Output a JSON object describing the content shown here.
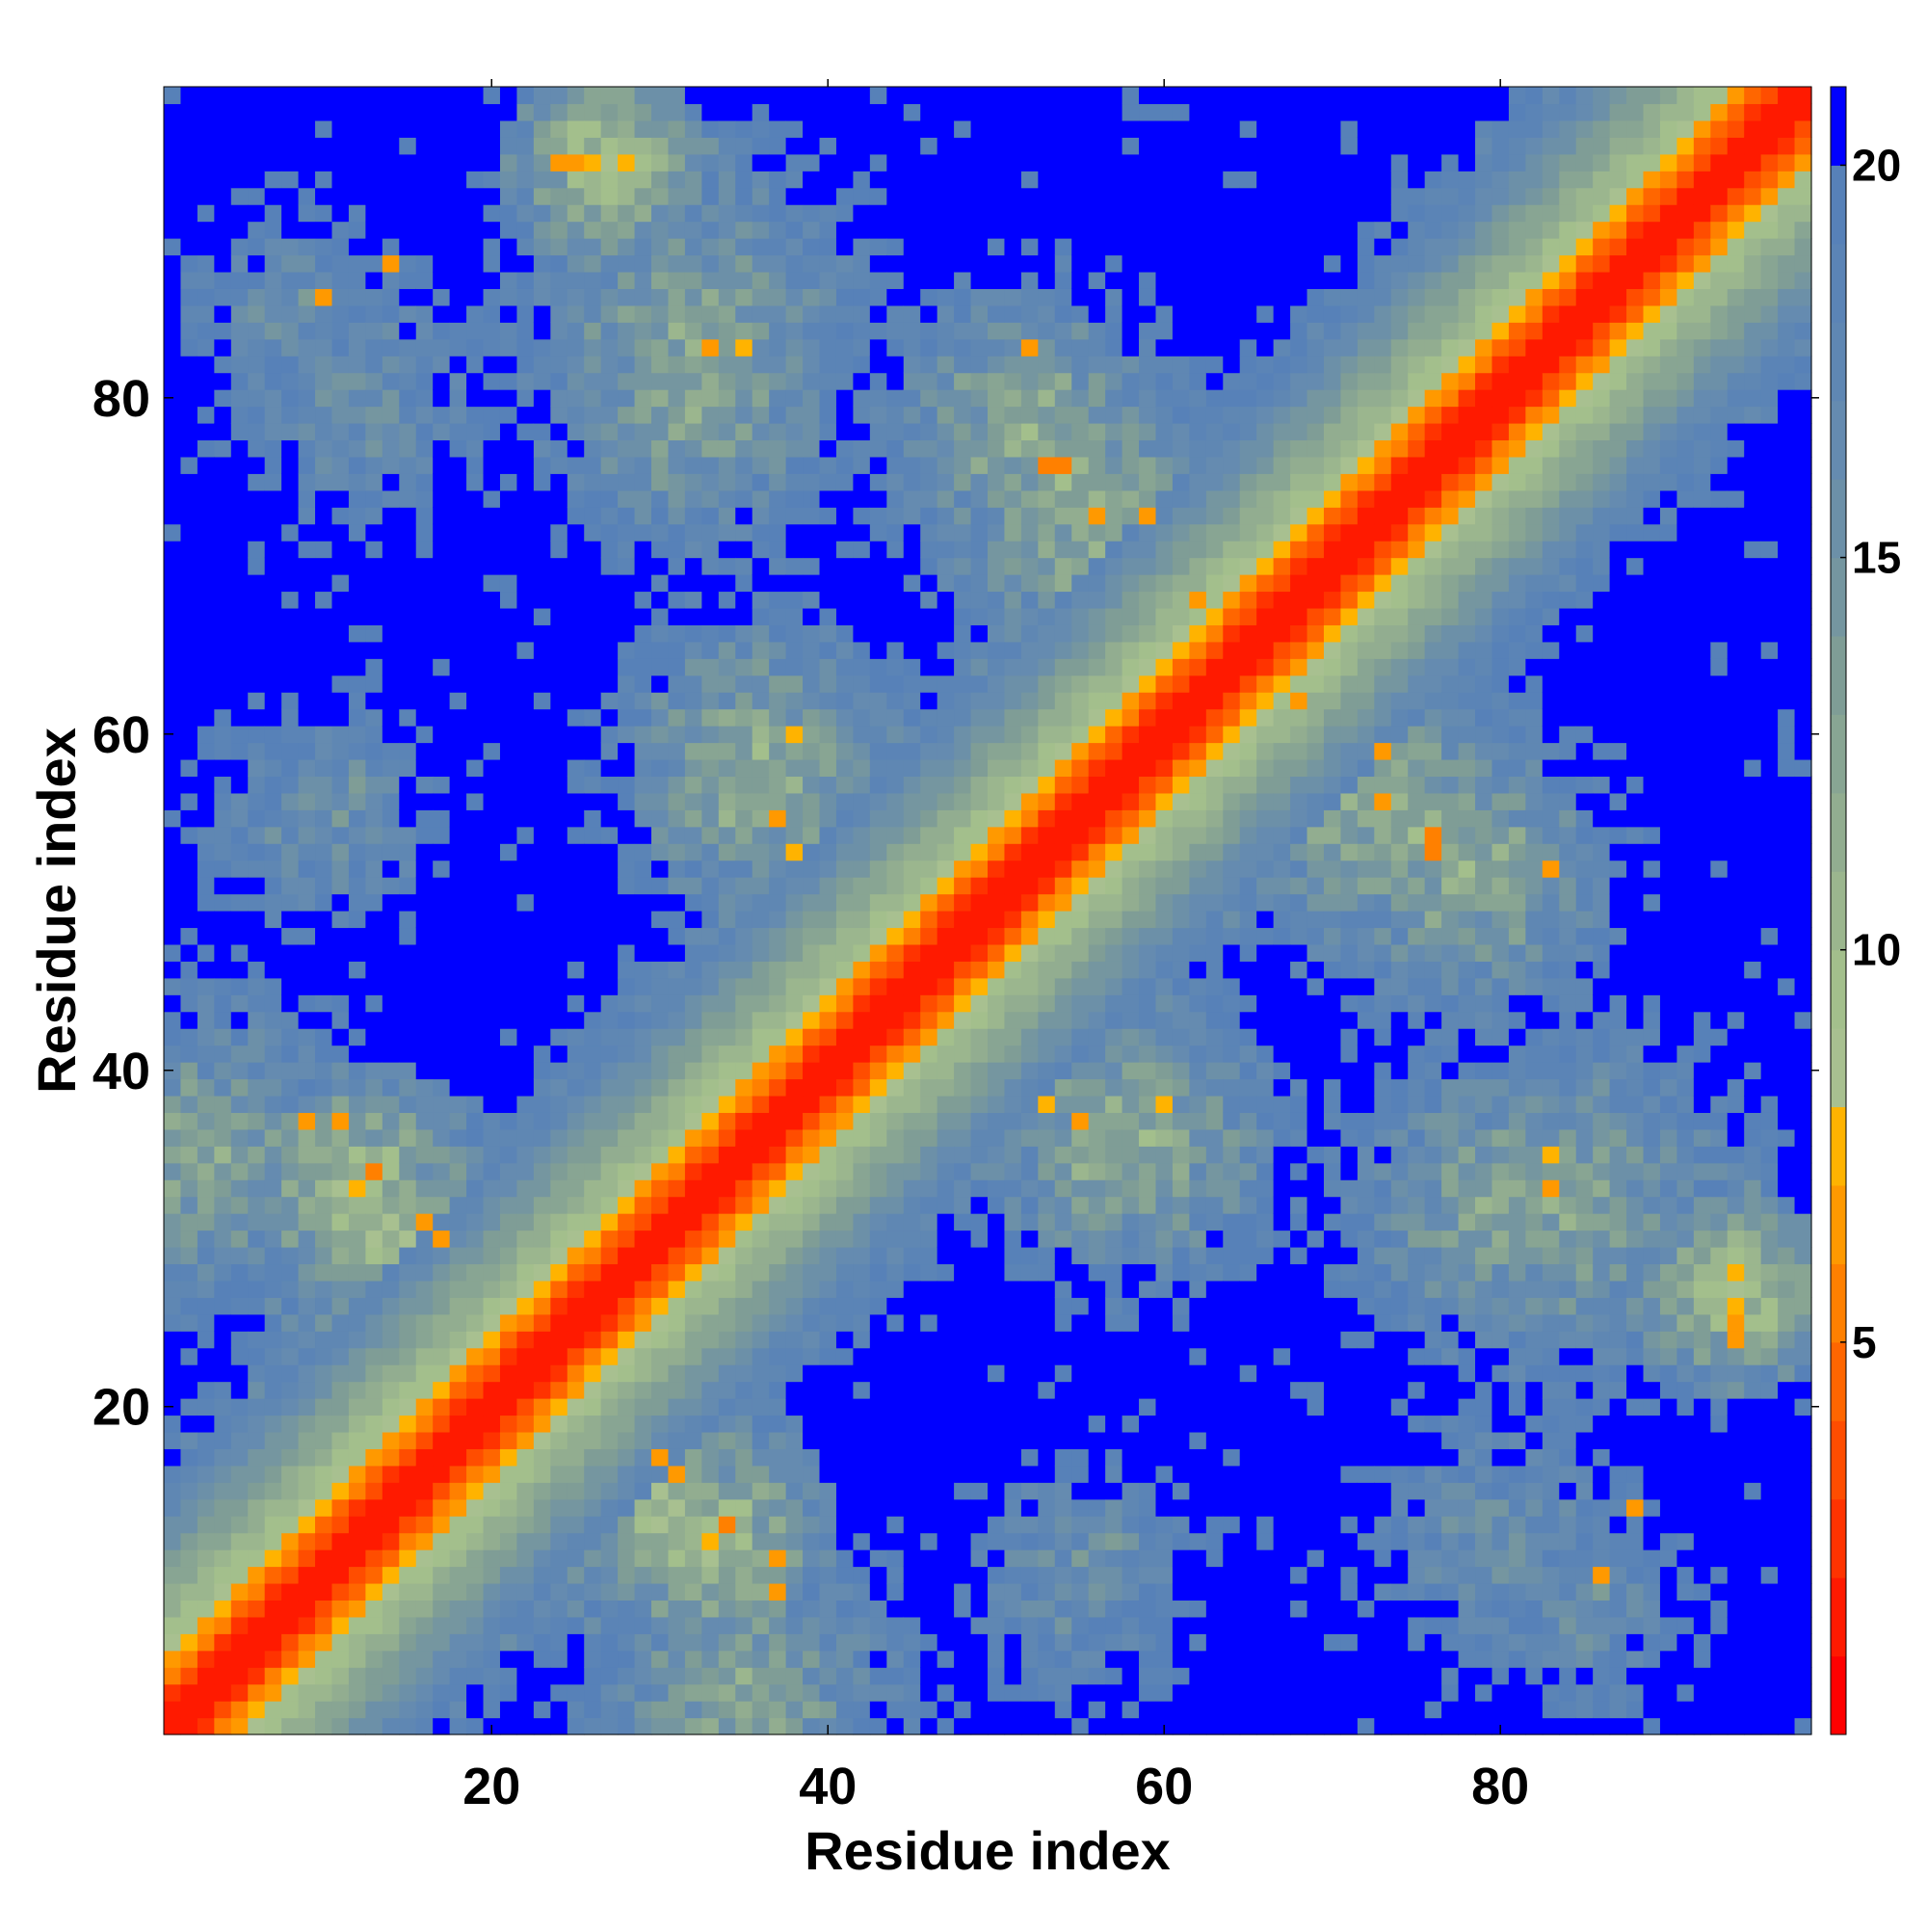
{
  "chart_data": {
    "type": "heatmap",
    "title": "",
    "xlabel": "Residue index",
    "ylabel": "Residue index",
    "n_residues": 98,
    "xlim": [
      1,
      98
    ],
    "ylim": [
      1,
      98
    ],
    "x_ticks": [
      20,
      40,
      60,
      80
    ],
    "y_ticks": [
      20,
      40,
      60,
      80
    ],
    "x_tick_labels": [
      "20",
      "40",
      "60",
      "80"
    ],
    "y_tick_labels": [
      "20",
      "40",
      "60",
      "80"
    ],
    "colorbar": {
      "range": [
        0,
        21
      ],
      "ticks": [
        5,
        10,
        15,
        20
      ],
      "tick_labels": [
        "5",
        "10",
        "15",
        "20"
      ],
      "levels": [
        {
          "min": 0,
          "max": 1,
          "color": "#ff0000"
        },
        {
          "min": 1,
          "max": 2,
          "color": "#ff1a00"
        },
        {
          "min": 2,
          "max": 3,
          "color": "#ff3300"
        },
        {
          "min": 3,
          "max": 4,
          "color": "#ff4d00"
        },
        {
          "min": 4,
          "max": 5,
          "color": "#ff6600"
        },
        {
          "min": 5,
          "max": 6,
          "color": "#ff8000"
        },
        {
          "min": 6,
          "max": 7,
          "color": "#ff9900"
        },
        {
          "min": 7,
          "max": 8,
          "color": "#ffb300"
        },
        {
          "min": 8,
          "max": 9,
          "color": "#a8c090"
        },
        {
          "min": 9,
          "max": 10,
          "color": "#a3bf8c"
        },
        {
          "min": 10,
          "max": 11,
          "color": "#9bb68e"
        },
        {
          "min": 11,
          "max": 12,
          "color": "#92ad90"
        },
        {
          "min": 12,
          "max": 13,
          "color": "#88a593"
        },
        {
          "min": 13,
          "max": 14,
          "color": "#7f9d96"
        },
        {
          "min": 14,
          "max": 15,
          "color": "#7596a0"
        },
        {
          "min": 15,
          "max": 16,
          "color": "#6c90a8"
        },
        {
          "min": 16,
          "max": 17,
          "color": "#658bb0"
        },
        {
          "min": 17,
          "max": 18,
          "color": "#5f87b3"
        },
        {
          "min": 18,
          "max": 19,
          "color": "#5b84b6"
        },
        {
          "min": 19,
          "max": 20,
          "color": "#5781b8"
        },
        {
          "min": 20,
          "max": 21,
          "color": "#0000ff"
        }
      ]
    },
    "description_of_values": "symmetric residue-residue distance map; diagonal band low values (red/orange), off-diagonal contact clusters medium values (green/steel blue), empty regions high values (blue)",
    "diagonal_band": [
      {
        "offset": 0,
        "value": 1
      },
      {
        "offset": 1,
        "value": 1
      },
      {
        "offset": 2,
        "value": 3
      },
      {
        "offset": 3,
        "value": 5
      },
      {
        "offset": 4,
        "value": 7
      },
      {
        "offset": 5,
        "value": 9
      },
      {
        "offset": 6,
        "value": 10
      },
      {
        "offset": 7,
        "value": 11
      },
      {
        "offset": 8,
        "value": 12
      },
      {
        "offset": 9,
        "value": 13
      },
      {
        "offset": 10,
        "value": 14
      },
      {
        "offset": 11,
        "value": 15
      },
      {
        "offset": 12,
        "value": 16
      },
      {
        "offset": 13,
        "value": 17
      },
      {
        "offset": 14,
        "value": 18
      }
    ],
    "contact_clusters": [
      {
        "residue_i": 3,
        "residue_j": 35,
        "spread": 8,
        "value": 12
      },
      {
        "residue_i": 12,
        "residue_j": 33,
        "spread": 5,
        "value": 9
      },
      {
        "residue_i": 8,
        "residue_j": 85,
        "spread": 7,
        "value": 15
      },
      {
        "residue_i": 26,
        "residue_j": 92,
        "spread": 5,
        "value": 13
      },
      {
        "residue_i": 32,
        "residue_j": 80,
        "spread": 8,
        "value": 12
      },
      {
        "residue_i": 35,
        "residue_j": 57,
        "spread": 6,
        "value": 11
      },
      {
        "residue_i": 12,
        "residue_j": 57,
        "spread": 6,
        "value": 16
      },
      {
        "residue_i": 52,
        "residue_j": 78,
        "spread": 7,
        "value": 11
      },
      {
        "residue_i": 57,
        "residue_j": 71,
        "spread": 6,
        "value": 10
      },
      {
        "residue_i": 30,
        "residue_j": 14,
        "spread": 6,
        "value": 10
      },
      {
        "residue_i": 55,
        "residue_j": 10,
        "spread": 8,
        "value": 15
      },
      {
        "residue_i": 58,
        "residue_j": 36,
        "spread": 7,
        "value": 11
      },
      {
        "residue_i": 74,
        "residue_j": 55,
        "spread": 7,
        "value": 11
      },
      {
        "residue_i": 84,
        "residue_j": 32,
        "spread": 9,
        "value": 12
      },
      {
        "residue_i": 80,
        "residue_j": 12,
        "spread": 9,
        "value": 15
      },
      {
        "residue_i": 94,
        "residue_j": 27,
        "spread": 4,
        "value": 8
      }
    ],
    "notable_cells": [
      {
        "residue_i": 24,
        "residue_j": 94,
        "value": 6
      },
      {
        "residue_i": 26,
        "residue_j": 94,
        "value": 7
      },
      {
        "residue_i": 14,
        "residue_j": 88,
        "value": 6
      },
      {
        "residue_i": 33,
        "residue_j": 83,
        "value": 6
      },
      {
        "residue_i": 53,
        "residue_j": 76,
        "value": 5
      },
      {
        "residue_i": 56,
        "residue_j": 73,
        "value": 6
      },
      {
        "residue_i": 38,
        "residue_j": 53,
        "value": 7
      },
      {
        "residue_i": 37,
        "residue_j": 55,
        "value": 6
      },
      {
        "residue_i": 11,
        "residue_j": 37,
        "value": 6
      },
      {
        "residue_i": 16,
        "residue_j": 31,
        "value": 6
      },
      {
        "residue_i": 30,
        "residue_j": 17,
        "value": 6
      },
      {
        "residue_i": 34,
        "residue_j": 13,
        "value": 5
      },
      {
        "residue_i": 37,
        "residue_j": 9,
        "value": 6
      },
      {
        "residue_i": 73,
        "residue_j": 59,
        "value": 6
      },
      {
        "residue_i": 76,
        "residue_j": 54,
        "value": 5
      },
      {
        "residue_i": 83,
        "residue_j": 52,
        "value": 6
      },
      {
        "residue_i": 83,
        "residue_j": 35,
        "value": 7
      },
      {
        "residue_i": 94,
        "residue_j": 25,
        "value": 6
      },
      {
        "residue_i": 86,
        "residue_j": 10,
        "value": 6
      },
      {
        "residue_i": 60,
        "residue_j": 38,
        "value": 7
      },
      {
        "residue_i": 68,
        "residue_j": 62,
        "value": 6
      }
    ]
  }
}
